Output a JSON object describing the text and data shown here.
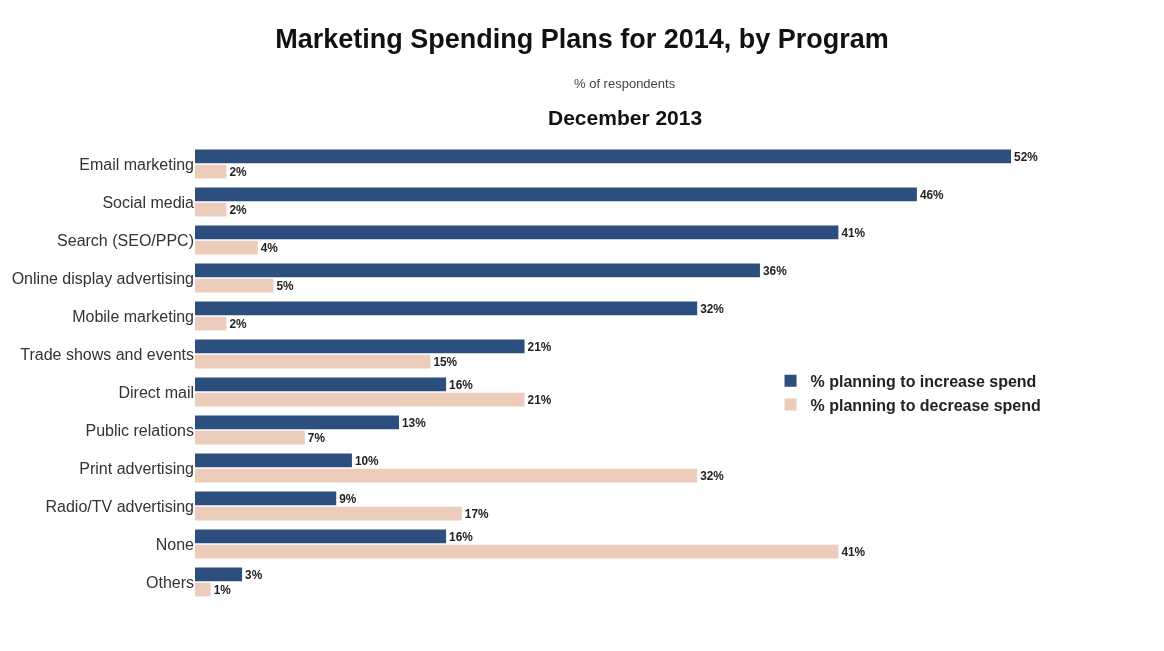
{
  "chart_data": {
    "type": "bar",
    "orientation": "horizontal",
    "title": "Marketing Spending Plans for 2014, by Program",
    "subtitle": "% of respondents",
    "annotations": [
      "December 2013"
    ],
    "categories": [
      "Email marketing",
      "Social media",
      "Search (SEO/PPC)",
      "Online display advertising",
      "Mobile marketing",
      "Trade shows and events",
      "Direct mail",
      "Public relations",
      "Print advertising",
      "Radio/TV advertising",
      "None",
      "Others"
    ],
    "series": [
      {
        "name": "% planning to increase spend",
        "color": "#2d4f7e",
        "values": [
          52,
          46,
          41,
          36,
          32,
          21,
          16,
          13,
          10,
          9,
          16,
          3
        ],
        "value_labels": [
          "52%",
          "46%",
          "41%",
          "36%",
          "32%",
          "21%",
          "16%",
          "13%",
          "10%",
          "9%",
          "16%",
          "3%"
        ]
      },
      {
        "name": "% planning to decrease spend",
        "color": "#ecccba",
        "values": [
          2,
          2,
          4,
          5,
          2,
          15,
          21,
          7,
          32,
          17,
          41,
          1
        ],
        "value_labels": [
          "2%",
          "2%",
          "4%",
          "5%",
          "2%",
          "15%",
          "21%",
          "7%",
          "32%",
          "17%",
          "41%",
          "1%"
        ]
      }
    ],
    "grid": false,
    "legend": "right"
  }
}
